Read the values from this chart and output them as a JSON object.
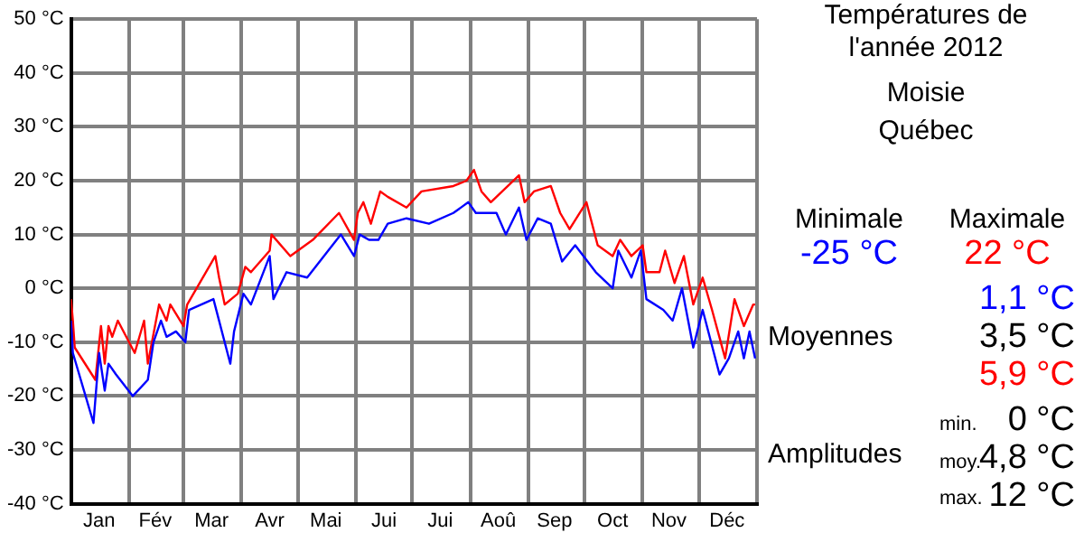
{
  "chart_data": {
    "type": "line",
    "title": "Températures de l'année 2012",
    "subtitle": "Moisie\nQuébec",
    "series": [
      {
        "color": "#0000ff",
        "x": [
          "2012-01-01",
          "2012-01-02",
          "2012-01-13",
          "2012-01-16",
          "2012-01-19",
          "2012-01-21",
          "2012-01-25",
          "2012-02-03",
          "2012-02-11",
          "2012-02-14",
          "2012-02-18",
          "2012-02-21",
          "2012-02-26",
          "2012-03-02",
          "2012-03-04",
          "2012-03-17",
          "2012-03-26",
          "2012-03-28",
          "2012-04-02",
          "2012-04-06",
          "2012-04-16",
          "2012-04-18",
          "2012-04-25",
          "2012-05-06",
          "2012-05-24",
          "2012-05-31",
          "2012-06-03",
          "2012-06-08",
          "2012-06-13",
          "2012-06-18",
          "2012-06-28",
          "2012-07-10",
          "2012-07-23",
          "2012-07-31",
          "2012-08-04",
          "2012-08-15",
          "2012-08-20",
          "2012-08-27",
          "2012-08-31",
          "2012-09-06",
          "2012-09-13",
          "2012-09-19",
          "2012-09-26",
          "2012-10-07",
          "2012-10-16",
          "2012-10-19",
          "2012-10-26",
          "2012-10-31",
          "2012-11-03",
          "2012-11-12",
          "2012-11-17",
          "2012-11-22",
          "2012-11-28",
          "2012-12-03",
          "2012-12-12",
          "2012-12-17",
          "2012-12-22",
          "2012-12-25",
          "2012-12-28",
          "2012-12-31"
        ],
        "values": [
          -6,
          -12,
          -25,
          -12,
          -19,
          -14,
          -16,
          -20,
          -17,
          -10,
          -6,
          -9,
          -8,
          -10,
          -4,
          -2,
          -14,
          -8,
          -1,
          -3,
          6,
          -2,
          3,
          2,
          10,
          6,
          10,
          9,
          9,
          12,
          13,
          12,
          14,
          16,
          14,
          14,
          10,
          15,
          9,
          13,
          12,
          5,
          8,
          3,
          0,
          7,
          2,
          7,
          -2,
          -4,
          -6,
          0,
          -11,
          -4,
          -16,
          -13,
          -8,
          -13,
          -8,
          -13
        ]
      },
      {
        "color": "#ff0000",
        "x": [
          "2012-01-01",
          "2012-01-02",
          "2012-01-03",
          "2012-01-14",
          "2012-01-17",
          "2012-01-19",
          "2012-01-21",
          "2012-01-23",
          "2012-01-26",
          "2012-02-04",
          "2012-02-09",
          "2012-02-11",
          "2012-02-17",
          "2012-02-21",
          "2012-02-23",
          "2012-03-01",
          "2012-03-03",
          "2012-03-18",
          "2012-03-20",
          "2012-03-23",
          "2012-03-30",
          "2012-04-03",
          "2012-04-06",
          "2012-04-16",
          "2012-04-17",
          "2012-04-27",
          "2012-05-09",
          "2012-05-23",
          "2012-05-31",
          "2012-06-02",
          "2012-06-05",
          "2012-06-09",
          "2012-06-14",
          "2012-06-18",
          "2012-06-28",
          "2012-07-06",
          "2012-07-23",
          "2012-07-30",
          "2012-08-03",
          "2012-08-07",
          "2012-08-12",
          "2012-08-27",
          "2012-08-30",
          "2012-09-04",
          "2012-09-13",
          "2012-09-18",
          "2012-09-23",
          "2012-10-02",
          "2012-10-08",
          "2012-10-16",
          "2012-10-20",
          "2012-10-26",
          "2012-11-01",
          "2012-11-03",
          "2012-11-10",
          "2012-11-13",
          "2012-11-18",
          "2012-11-23",
          "2012-11-28",
          "2012-12-03",
          "2012-12-08",
          "2012-12-15",
          "2012-12-20",
          "2012-12-25",
          "2012-12-30",
          "2012-12-31"
        ],
        "values": [
          -2,
          -6,
          -11,
          -17,
          -7,
          -14,
          -7,
          -9,
          -6,
          -12,
          -6,
          -14,
          -3,
          -6,
          -3,
          -7,
          -3,
          6,
          2,
          -3,
          -1,
          4,
          3,
          7,
          10,
          6,
          9,
          14,
          9,
          14,
          16,
          12,
          18,
          17,
          15,
          18,
          19,
          20,
          22,
          18,
          16,
          21,
          16,
          18,
          19,
          14,
          11,
          16,
          8,
          6,
          9,
          6,
          8,
          3,
          3,
          7,
          1,
          6,
          -3,
          2,
          -4,
          -13,
          -2,
          -7,
          -3,
          -3
        ]
      }
    ],
    "xlim": [
      "2012-01-01",
      "2013-01-01"
    ],
    "xticks": [
      {
        "value": "2012-01-01",
        "label": null
      },
      {
        "value": "2012-01-16",
        "label": "Jan"
      },
      {
        "value": "2012-02-01",
        "label": null
      },
      {
        "value": "2012-02-15",
        "label": "Fév"
      },
      {
        "value": "2012-03-01",
        "label": null
      },
      {
        "value": "2012-03-16",
        "label": "Mar"
      },
      {
        "value": "2012-04-01",
        "label": null
      },
      {
        "value": "2012-04-16",
        "label": "Avr"
      },
      {
        "value": "2012-05-01",
        "label": null
      },
      {
        "value": "2012-05-16",
        "label": "Mai"
      },
      {
        "value": "2012-06-01",
        "label": null
      },
      {
        "value": "2012-06-16",
        "label": "Jui"
      },
      {
        "value": "2012-07-01",
        "label": null
      },
      {
        "value": "2012-07-16",
        "label": "Jui"
      },
      {
        "value": "2012-08-01",
        "label": null
      },
      {
        "value": "2012-08-16",
        "label": "Aoû"
      },
      {
        "value": "2012-09-01",
        "label": null
      },
      {
        "value": "2012-09-15",
        "label": "Sep"
      },
      {
        "value": "2012-10-01",
        "label": null
      },
      {
        "value": "2012-10-16",
        "label": "Oct"
      },
      {
        "value": "2012-11-01",
        "label": null
      },
      {
        "value": "2012-11-15",
        "label": "Nov"
      },
      {
        "value": "2012-12-01",
        "label": null
      },
      {
        "value": "2012-12-16",
        "label": "Déc"
      },
      {
        "value": "2013-01-01",
        "label": null
      }
    ],
    "ylim": [
      -40,
      50
    ],
    "yticks": [
      {
        "value": -40,
        "label": "-40 °C"
      },
      {
        "value": -30,
        "label": "-30 °C"
      },
      {
        "value": -20,
        "label": "-20 °C"
      },
      {
        "value": -10,
        "label": "-10 °C"
      },
      {
        "value": 0,
        "label": "0 °C"
      },
      {
        "value": 10,
        "label": "10 °C"
      },
      {
        "value": 20,
        "label": "20 °C"
      },
      {
        "value": 30,
        "label": "30 °C"
      },
      {
        "value": 40,
        "label": "40 °C"
      },
      {
        "value": 50,
        "label": "50 °C"
      }
    ],
    "grid": true,
    "marker": "none",
    "line_style": "solid",
    "annotations": [
      "Minimale",
      "Maximale",
      "-25 °C",
      "22 °C",
      "Moyennes",
      "1,1 °C",
      "3,5 °C",
      "5,9 °C",
      "Amplitudes",
      "min.",
      "0 °C",
      "moy.",
      "4,8 °C",
      "max.",
      "12 °C"
    ]
  }
}
